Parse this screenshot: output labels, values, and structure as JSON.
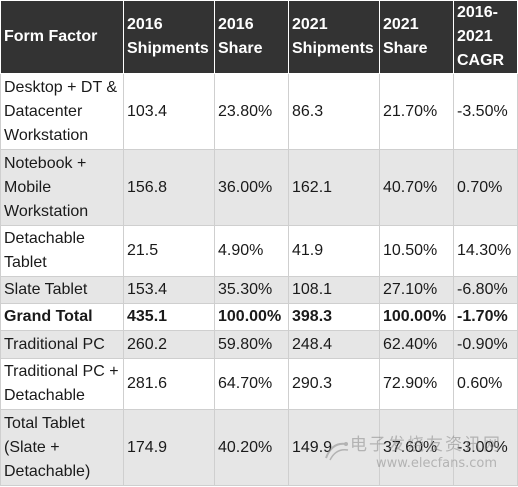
{
  "table": {
    "headers": [
      "Form Factor",
      "2016 Shipments",
      "2016 Share",
      "2021 Shipments",
      "2021 Share",
      "2016-2021 CAGR"
    ],
    "rows": [
      [
        "Desktop + DT & Datacenter Workstation",
        "103.4",
        "23.80%",
        "86.3",
        "21.70%",
        "-3.50%"
      ],
      [
        "Notebook + Mobile Workstation",
        "156.8",
        "36.00%",
        "162.1",
        "40.70%",
        "0.70%"
      ],
      [
        "Detachable Tablet",
        "21.5",
        "4.90%",
        "41.9",
        "10.50%",
        "14.30%"
      ],
      [
        "Slate Tablet",
        "153.4",
        "35.30%",
        "108.1",
        "27.10%",
        "-6.80%"
      ],
      [
        "Grand Total",
        "435.1",
        "100.00%",
        "398.3",
        "100.00%",
        "-1.70%"
      ],
      [
        "Traditional PC",
        "260.2",
        "59.80%",
        "248.4",
        "62.40%",
        "-0.90%"
      ],
      [
        "Traditional PC + Detachable",
        "281.6",
        "64.70%",
        "290.3",
        "72.90%",
        "0.60%"
      ],
      [
        "Total Tablet (Slate + Detachable)",
        "174.9",
        "40.20%",
        "149.9",
        "37.60%",
        "-3.00%"
      ]
    ]
  },
  "watermark": {
    "line1": "电子发烧友资讯网",
    "line2": "www.elecfans.com"
  },
  "colors": {
    "header_bg": "#333333",
    "header_text": "#ffffff",
    "row_alt_bg": "#e6e6e6",
    "row_bg": "#ffffff"
  }
}
